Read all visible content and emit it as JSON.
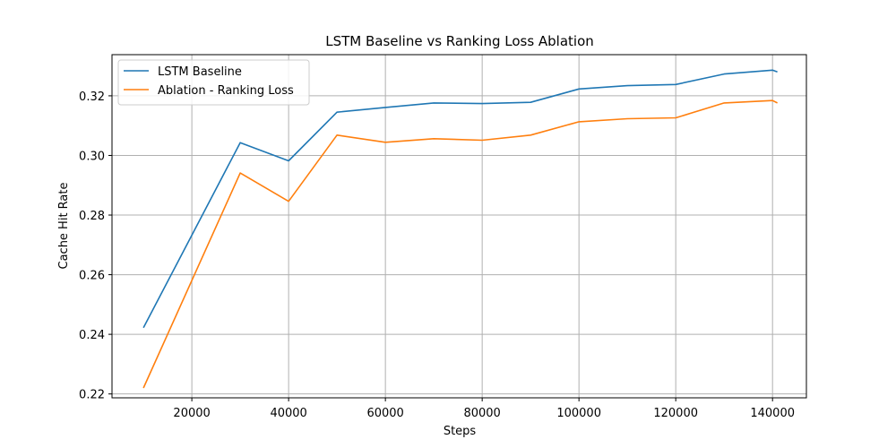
{
  "chart_data": {
    "type": "line",
    "title": "LSTM Baseline vs Ranking Loss Ablation",
    "xlabel": "Steps",
    "ylabel": "Cache Hit Rate",
    "xlim": [
      3500,
      147000
    ],
    "ylim": [
      0.2187,
      0.3338
    ],
    "xticks": [
      20000,
      40000,
      60000,
      80000,
      100000,
      120000,
      140000
    ],
    "yticks": [
      0.22,
      0.24,
      0.26,
      0.28,
      0.3,
      0.32
    ],
    "xtick_labels": [
      "20000",
      "40000",
      "60000",
      "80000",
      "100000",
      "120000",
      "140000"
    ],
    "ytick_labels": [
      "0.22",
      "0.24",
      "0.26",
      "0.28",
      "0.30",
      "0.32"
    ],
    "grid": true,
    "legend_position": "top-left",
    "series": [
      {
        "name": "LSTM Baseline",
        "color": "#1f77b4",
        "x": [
          10000,
          30000,
          40000,
          50000,
          60000,
          70000,
          80000,
          90000,
          100000,
          110000,
          120000,
          130000,
          140000,
          141000
        ],
        "y": [
          0.2422,
          0.3043,
          0.2982,
          0.3145,
          0.3161,
          0.3176,
          0.3174,
          0.3178,
          0.3223,
          0.3234,
          0.3238,
          0.3273,
          0.3286,
          0.328
        ]
      },
      {
        "name": "Ablation - Ranking Loss",
        "color": "#ff7f0e",
        "x": [
          10000,
          30000,
          40000,
          50000,
          60000,
          70000,
          80000,
          90000,
          100000,
          110000,
          120000,
          130000,
          140000,
          141000
        ],
        "y": [
          0.222,
          0.2941,
          0.2846,
          0.3068,
          0.3044,
          0.3056,
          0.3051,
          0.3068,
          0.3113,
          0.3123,
          0.3126,
          0.3176,
          0.3184,
          0.3176
        ]
      }
    ]
  }
}
